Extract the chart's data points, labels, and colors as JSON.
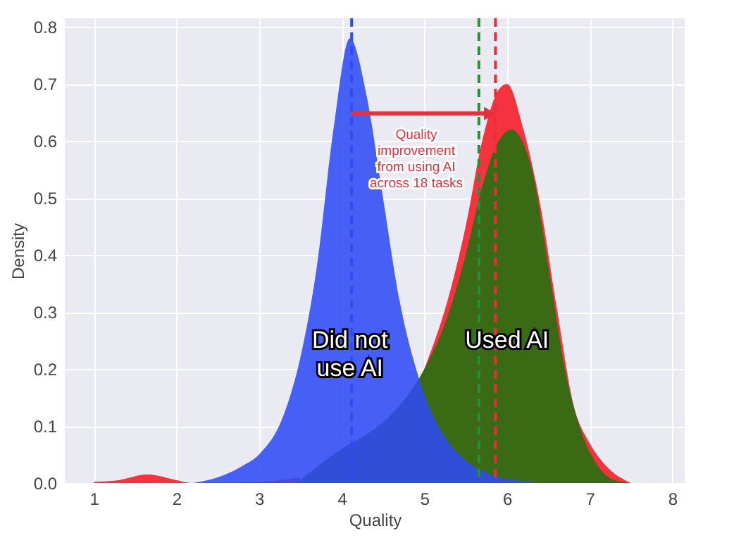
{
  "chart_data": {
    "type": "area",
    "xlabel": "Quality",
    "ylabel": "Density",
    "xlim": [
      0.65,
      8.15
    ],
    "ylim": [
      0,
      0.815
    ],
    "xticks": [
      1,
      2,
      3,
      4,
      5,
      6,
      7,
      8
    ],
    "yticks": [
      {
        "value": 0,
        "label": "0.0"
      },
      0.1,
      0.2,
      0.3,
      0.4,
      0.5,
      0.6,
      0.7,
      0.8
    ],
    "grid": true,
    "series": [
      {
        "name": "Used AI",
        "color": "#f5333f",
        "x": [
          1.0,
          1.3,
          1.65,
          2.0,
          2.2,
          3.0,
          3.5,
          4.0,
          4.5,
          5.0,
          5.3,
          5.5,
          5.7,
          5.9,
          6.0,
          6.2,
          6.4,
          6.6,
          6.8,
          7.0,
          7.2,
          7.5
        ],
        "values": [
          0.002,
          0.005,
          0.015,
          0.005,
          0,
          0.002,
          0.01,
          null,
          null,
          0.2,
          0.33,
          0.45,
          0.6,
          0.69,
          0.7,
          0.62,
          0.49,
          0.31,
          0.14,
          0.07,
          0.03,
          0
        ]
      },
      {
        "color": "#3b6a14",
        "x": [
          3.5,
          4.0,
          4.3,
          4.6,
          5.0,
          5.3,
          5.5,
          5.7,
          5.9,
          6.05,
          6.3,
          6.5,
          6.7,
          6.9,
          7.1,
          7.3,
          7.5
        ],
        "values": [
          0.005,
          0.06,
          0.085,
          0.12,
          0.2,
          0.3,
          0.4,
          0.52,
          0.6,
          0.62,
          0.55,
          0.38,
          0.2,
          0.09,
          0.03,
          0.005,
          0
        ]
      },
      {
        "name": "Did not use AI",
        "color": "#2f4bf5",
        "x": [
          2.2,
          2.5,
          2.8,
          3.0,
          3.3,
          3.5,
          3.7,
          3.9,
          4.1,
          4.3,
          4.5,
          4.7,
          4.9,
          5.1,
          5.3,
          5.5,
          5.8,
          6.2,
          6.5
        ],
        "values": [
          0,
          0.01,
          0.03,
          0.05,
          0.12,
          0.22,
          0.38,
          0.62,
          0.78,
          0.68,
          0.5,
          0.32,
          0.2,
          0.12,
          0.07,
          0.04,
          0.015,
          0.003,
          0
        ]
      }
    ],
    "ref_lines": [
      {
        "axis": "x",
        "value": 4.12,
        "color": "#2f4bf5",
        "line_style": "dashed"
      },
      {
        "axis": "x",
        "value": 5.66,
        "color": "#2e8b3a",
        "line_style": "dashed"
      },
      {
        "axis": "x",
        "value": 5.86,
        "color": "#e8303c",
        "line_style": "dashed"
      }
    ],
    "annotations": [
      "Quality improvement from using AI across 18 tasks"
    ]
  }
}
